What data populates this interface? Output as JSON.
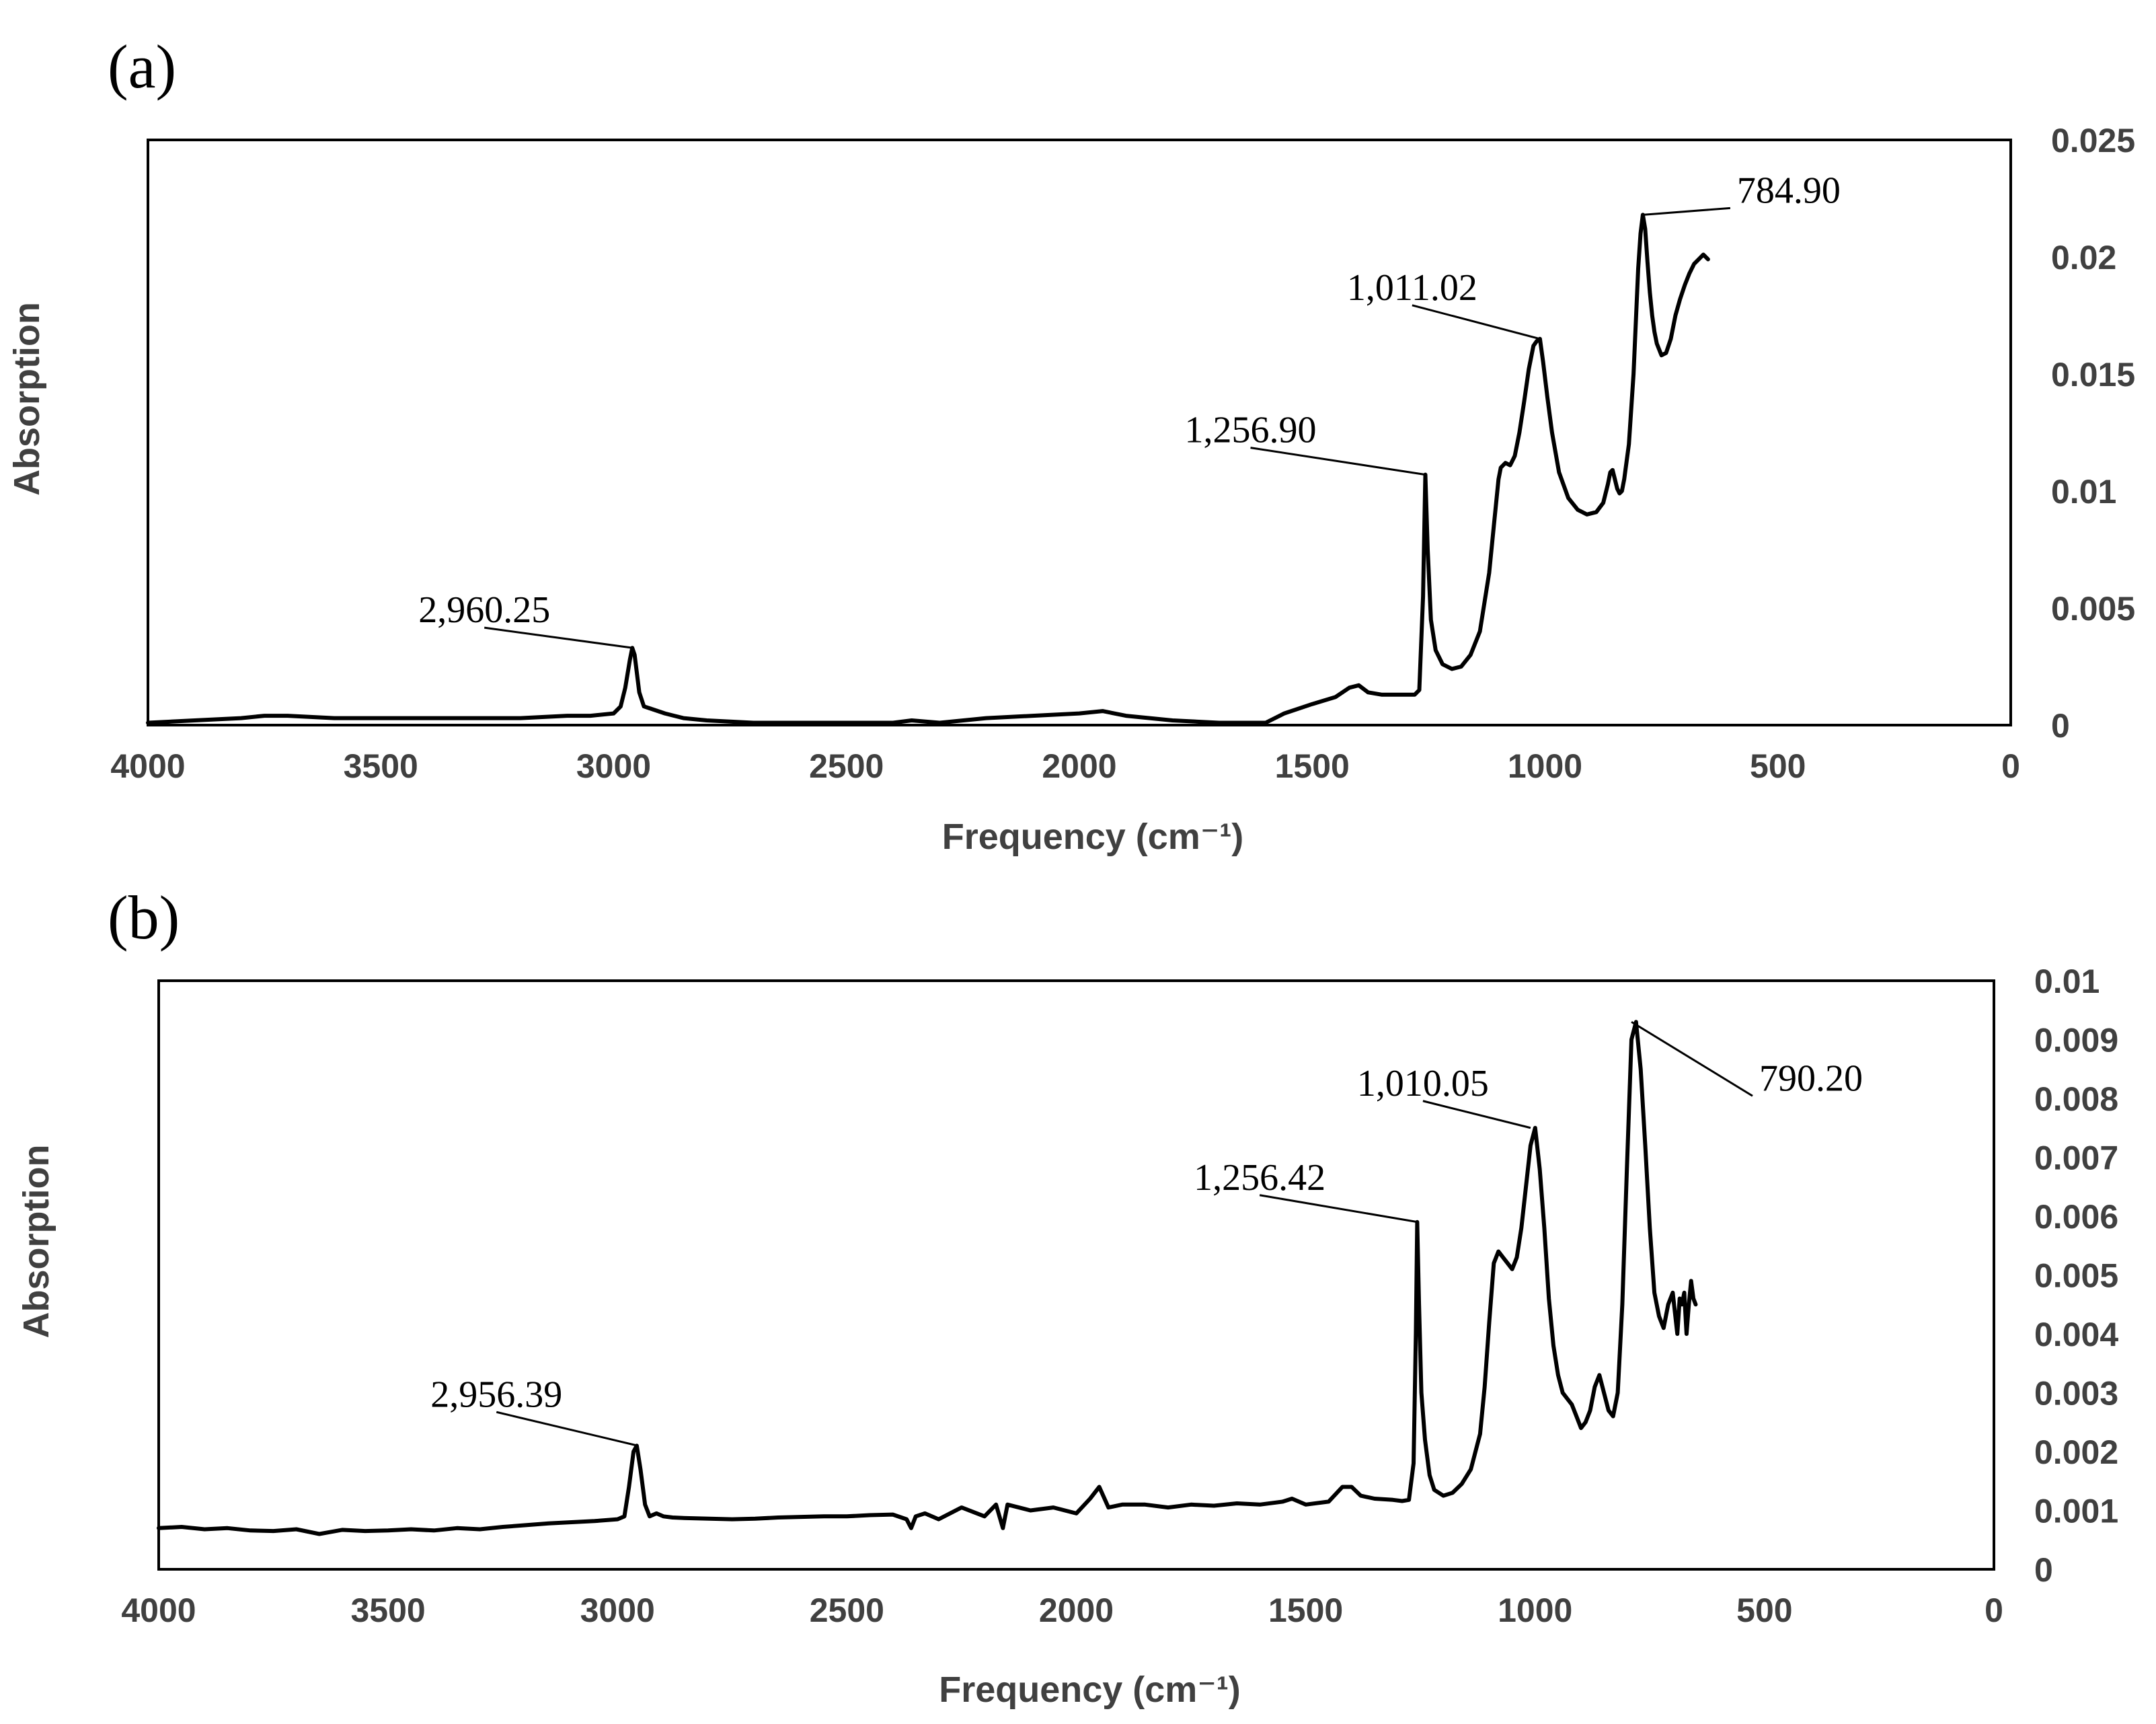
{
  "chart_data": [
    {
      "type": "line",
      "panel_label": "(a)",
      "xlabel": "Frequency (cm⁻¹)",
      "ylabel": "Absorption",
      "xlim": [
        4000,
        0
      ],
      "ylim": [
        0,
        0.025
      ],
      "x_ticks": [
        "4000",
        "3500",
        "3000",
        "2500",
        "2000",
        "1500",
        "1000",
        "500",
        "0"
      ],
      "y_ticks": [
        "0",
        "0.005",
        "0.01",
        "0.015",
        "0.02",
        "0.025"
      ],
      "y_axis_side": "right",
      "grid": false,
      "series": [
        {
          "color": "#000000",
          "x": [
            4000,
            3900,
            3800,
            3750,
            3700,
            3600,
            3500,
            3400,
            3300,
            3200,
            3100,
            3050,
            3000,
            2985,
            2975,
            2965,
            2960,
            2955,
            2945,
            2935,
            2920,
            2905,
            2890,
            2870,
            2850,
            2800,
            2700,
            2600,
            2500,
            2400,
            2360,
            2300,
            2200,
            2100,
            2000,
            1950,
            1900,
            1800,
            1700,
            1600,
            1560,
            1500,
            1450,
            1420,
            1400,
            1380,
            1350,
            1300,
            1280,
            1270,
            1262,
            1257,
            1252,
            1245,
            1235,
            1220,
            1200,
            1180,
            1160,
            1140,
            1120,
            1110,
            1100,
            1095,
            1085,
            1075,
            1065,
            1055,
            1045,
            1035,
            1025,
            1018,
            1011,
            1004,
            995,
            985,
            970,
            950,
            930,
            910,
            890,
            875,
            865,
            860,
            855,
            850,
            845,
            840,
            835,
            830,
            820,
            810,
            800,
            795,
            790,
            785,
            780,
            775,
            770,
            765,
            760,
            750,
            740,
            730,
            720,
            710,
            700,
            690,
            680,
            670,
            660,
            650
          ],
          "y": [
            0.0001,
            0.0002,
            0.0003,
            0.0004,
            0.0004,
            0.0003,
            0.0003,
            0.0003,
            0.0003,
            0.0003,
            0.0004,
            0.0004,
            0.0005,
            0.0008,
            0.0016,
            0.0028,
            0.0033,
            0.003,
            0.0014,
            0.0008,
            0.0007,
            0.0006,
            0.0005,
            0.0004,
            0.0003,
            0.0002,
            0.0001,
            0.0001,
            0.0001,
            0.0001,
            0.0002,
            0.0001,
            0.0003,
            0.0004,
            0.0005,
            0.0006,
            0.0004,
            0.0002,
            0.0001,
            0.0001,
            0.0005,
            0.0009,
            0.0012,
            0.0016,
            0.0017,
            0.0014,
            0.0013,
            0.0013,
            0.0013,
            0.0015,
            0.0055,
            0.0107,
            0.0075,
            0.0045,
            0.0032,
            0.0026,
            0.0024,
            0.0025,
            0.003,
            0.004,
            0.0065,
            0.0085,
            0.0105,
            0.011,
            0.0112,
            0.0111,
            0.0115,
            0.0125,
            0.0138,
            0.0152,
            0.0162,
            0.0164,
            0.0165,
            0.0155,
            0.014,
            0.0125,
            0.0108,
            0.0097,
            0.0092,
            0.009,
            0.0091,
            0.0095,
            0.0103,
            0.0108,
            0.0109,
            0.0105,
            0.0101,
            0.0099,
            0.01,
            0.0105,
            0.012,
            0.015,
            0.0195,
            0.021,
            0.0218,
            0.0212,
            0.0198,
            0.0185,
            0.0175,
            0.0168,
            0.0163,
            0.0158,
            0.0159,
            0.0165,
            0.0175,
            0.0182,
            0.0188,
            0.0193,
            0.0197,
            0.0199,
            0.0201,
            0.0199
          ]
        }
      ],
      "annotations": [
        {
          "text": "2,960.25",
          "x": 2960,
          "y": 0.0033
        },
        {
          "text": "1,256.90",
          "x": 1257,
          "y": 0.0107
        },
        {
          "text": "1,011.02",
          "x": 1011,
          "y": 0.0165
        },
        {
          "text": "784.90",
          "x": 790,
          "y": 0.0218
        }
      ]
    },
    {
      "type": "line",
      "panel_label": "(b)",
      "xlabel": "Frequency (cm⁻¹)",
      "ylabel": "Absorption",
      "xlim": [
        4000,
        0
      ],
      "ylim": [
        0,
        0.01
      ],
      "x_ticks": [
        "4000",
        "3500",
        "3000",
        "2500",
        "2000",
        "1500",
        "1000",
        "500",
        "0"
      ],
      "y_ticks": [
        "0",
        "0.001",
        "0.002",
        "0.003",
        "0.004",
        "0.005",
        "0.006",
        "0.007",
        "0.008",
        "0.009",
        "0.01"
      ],
      "y_axis_side": "right",
      "grid": false,
      "series": [
        {
          "color": "#000000",
          "x": [
            4000,
            3950,
            3900,
            3850,
            3800,
            3750,
            3700,
            3650,
            3600,
            3550,
            3500,
            3450,
            3400,
            3350,
            3300,
            3250,
            3200,
            3150,
            3100,
            3050,
            3000,
            2985,
            2975,
            2965,
            2958,
            2950,
            2940,
            2930,
            2915,
            2900,
            2880,
            2850,
            2800,
            2750,
            2700,
            2650,
            2600,
            2550,
            2500,
            2450,
            2400,
            2370,
            2360,
            2350,
            2330,
            2300,
            2250,
            2200,
            2175,
            2160,
            2150,
            2100,
            2050,
            2000,
            1970,
            1950,
            1930,
            1900,
            1850,
            1800,
            1750,
            1700,
            1650,
            1600,
            1550,
            1530,
            1500,
            1450,
            1420,
            1400,
            1380,
            1350,
            1310,
            1290,
            1275,
            1265,
            1260,
            1257,
            1253,
            1248,
            1240,
            1230,
            1220,
            1200,
            1180,
            1160,
            1140,
            1120,
            1110,
            1100,
            1090,
            1080,
            1070,
            1060,
            1050,
            1040,
            1030,
            1020,
            1010,
            1000,
            990,
            980,
            970,
            960,
            950,
            940,
            930,
            920,
            910,
            900,
            890,
            880,
            870,
            860,
            850,
            840,
            830,
            820,
            810,
            800,
            790,
            780,
            770,
            760,
            750,
            740,
            730,
            720,
            710,
            700,
            690,
            685,
            680,
            675,
            670,
            665,
            660,
            655,
            650
          ],
          "y": [
            0.0007,
            0.00072,
            0.00068,
            0.0007,
            0.00066,
            0.00065,
            0.00068,
            0.0006,
            0.00067,
            0.00065,
            0.00066,
            0.00068,
            0.00066,
            0.0007,
            0.00068,
            0.00072,
            0.00075,
            0.00078,
            0.0008,
            0.00082,
            0.00085,
            0.0009,
            0.0014,
            0.002,
            0.0021,
            0.0017,
            0.0011,
            0.0009,
            0.00095,
            0.0009,
            0.00088,
            0.00087,
            0.00086,
            0.00085,
            0.00086,
            0.00088,
            0.00089,
            0.0009,
            0.0009,
            0.00092,
            0.00093,
            0.00085,
            0.0007,
            0.0009,
            0.00095,
            0.00085,
            0.00105,
            0.0009,
            0.0011,
            0.0007,
            0.0011,
            0.001,
            0.00105,
            0.00095,
            0.0012,
            0.0014,
            0.00105,
            0.0011,
            0.0011,
            0.00105,
            0.0011,
            0.00108,
            0.00112,
            0.0011,
            0.00115,
            0.0012,
            0.0011,
            0.00115,
            0.0014,
            0.0014,
            0.00125,
            0.0012,
            0.00118,
            0.00116,
            0.00118,
            0.0018,
            0.004,
            0.0059,
            0.0045,
            0.003,
            0.0022,
            0.0016,
            0.00135,
            0.00125,
            0.0013,
            0.00145,
            0.0017,
            0.0023,
            0.0031,
            0.0042,
            0.0052,
            0.0054,
            0.0053,
            0.0052,
            0.0051,
            0.0053,
            0.0058,
            0.0065,
            0.0072,
            0.0075,
            0.0068,
            0.0058,
            0.0046,
            0.0038,
            0.0033,
            0.003,
            0.0029,
            0.0028,
            0.0026,
            0.0024,
            0.0025,
            0.0027,
            0.0031,
            0.0033,
            0.003,
            0.0027,
            0.0026,
            0.003,
            0.0045,
            0.0068,
            0.009,
            0.0093,
            0.0085,
            0.0072,
            0.0058,
            0.0047,
            0.0043,
            0.0041,
            0.0045,
            0.0047,
            0.004,
            0.0046,
            0.0045,
            0.0047,
            0.004,
            0.0045,
            0.0049,
            0.0046,
            0.0045
          ]
        }
      ],
      "annotations": [
        {
          "text": "2,956.39",
          "x": 2956,
          "y": 0.0021
        },
        {
          "text": "1,256.42",
          "x": 1256,
          "y": 0.0059
        },
        {
          "text": "1,010.05",
          "x": 1010,
          "y": 0.0075
        },
        {
          "text": "790.20",
          "x": 790,
          "y": 0.0093
        }
      ]
    }
  ]
}
